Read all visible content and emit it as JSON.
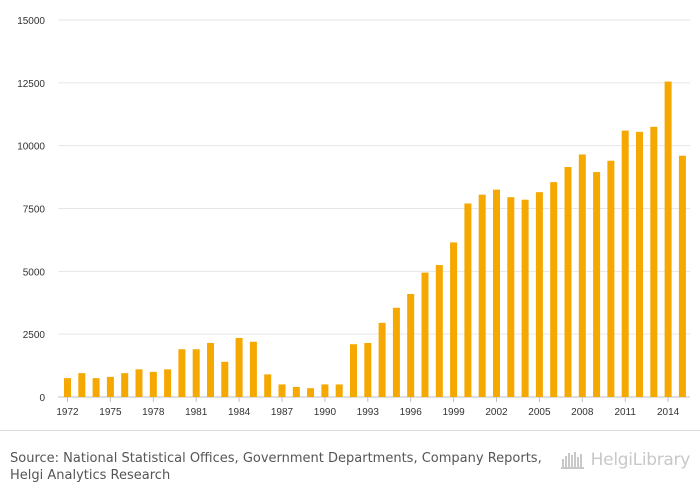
{
  "chart_data": {
    "type": "bar",
    "title": "",
    "xlabel": "",
    "ylabel": "",
    "ylim": [
      0,
      15000
    ],
    "yticks": [
      0,
      2500,
      5000,
      7500,
      10000,
      12500,
      15000
    ],
    "ytick_labels": [
      "0",
      "2500",
      "5000",
      "7500",
      "10000",
      "12500",
      "15000"
    ],
    "xtick_labels": [
      "1972",
      "1975",
      "1978",
      "1981",
      "1984",
      "1987",
      "1990",
      "1993",
      "1996",
      "1999",
      "2002",
      "2005",
      "2008",
      "2011",
      "2014"
    ],
    "grid": true,
    "bar_color": "#f5a800",
    "categories": [
      "1972",
      "1973",
      "1974",
      "1975",
      "1976",
      "1977",
      "1978",
      "1979",
      "1980",
      "1981",
      "1982",
      "1983",
      "1984",
      "1985",
      "1986",
      "1987",
      "1988",
      "1989",
      "1990",
      "1991",
      "1992",
      "1993",
      "1994",
      "1995",
      "1996",
      "1997",
      "1998",
      "1999",
      "2000",
      "2001",
      "2002",
      "2003",
      "2004",
      "2005",
      "2006",
      "2007",
      "2008",
      "2009",
      "2010",
      "2011",
      "2012",
      "2013",
      "2014",
      "2015"
    ],
    "values": [
      750,
      950,
      750,
      800,
      950,
      1100,
      1000,
      1100,
      1900,
      1900,
      2150,
      1400,
      2350,
      2200,
      900,
      500,
      400,
      350,
      500,
      500,
      2100,
      2150,
      2950,
      3550,
      4100,
      4950,
      5250,
      6150,
      7700,
      8050,
      8250,
      7950,
      7850,
      8150,
      8550,
      9150,
      9650,
      8950,
      9400,
      10600,
      10550,
      10750,
      12550,
      9600
    ]
  },
  "footer": {
    "source": "Source: National Statistical Offices, Government Departments, Company Reports, Helgi Analytics Research",
    "brand": "HelgiLibrary",
    "logo_icon": "helgi-library-logo-icon",
    "brand_color": "#c8c8c8"
  }
}
